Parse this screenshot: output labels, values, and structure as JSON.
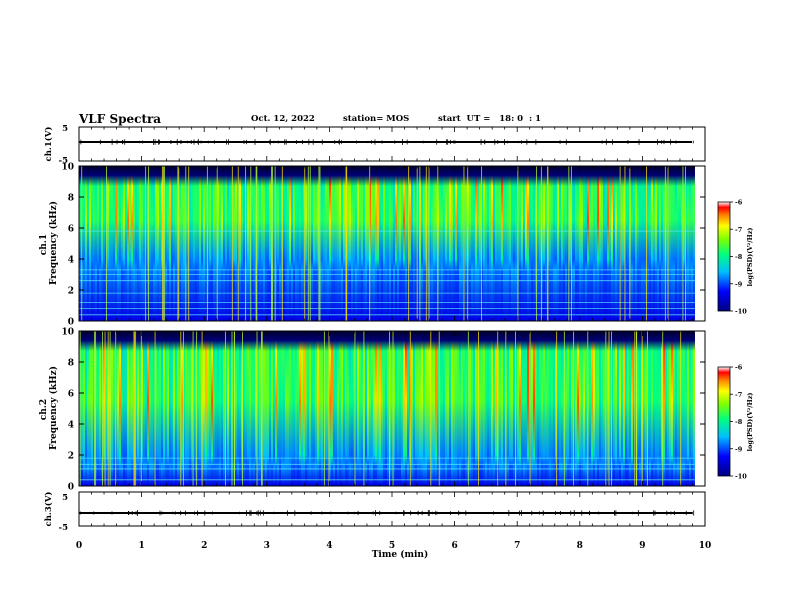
{
  "header": {
    "title": "VLF Spectra",
    "date": "Oct. 12, 2022",
    "station": "station= MOS",
    "start": "start  UT =   18: 0  : 1"
  },
  "chart_data": [
    {
      "type": "line",
      "panel": "ch1-waveform",
      "ylabel": "ch.1(V)",
      "yticks": [
        "5",
        "-5"
      ],
      "ylim": [
        -5,
        5
      ],
      "x_unit": "min",
      "xlim": [
        0,
        10
      ],
      "data_x_end": 9.84,
      "series": [
        {
          "values_mean": 0.0
        }
      ]
    },
    {
      "type": "heatmap",
      "panel": "ch1-spectrogram",
      "ylabel": "ch.1\nFrequency (kHz)",
      "yticks": [
        "0",
        "2",
        "4",
        "6",
        "8",
        "10"
      ],
      "ylim": [
        0,
        10
      ],
      "xlim": [
        0,
        10
      ],
      "data_x_end": 9.84,
      "intense_band_khz": [
        4,
        9
      ],
      "colorbar": {
        "label": "log(PSD)(V²/Hz)",
        "ticks": [
          "-6",
          "-7",
          "-8",
          "-9",
          "-10"
        ],
        "range": [
          -10,
          -6
        ]
      }
    },
    {
      "type": "heatmap",
      "panel": "ch2-spectrogram",
      "ylabel": "ch.2\nFrequency (kHz)",
      "yticks": [
        "0",
        "2",
        "4",
        "6",
        "8",
        "10"
      ],
      "ylim": [
        0,
        10
      ],
      "xlim": [
        0,
        10
      ],
      "data_x_end": 9.84,
      "intense_band_khz": [
        2,
        9
      ],
      "colorbar": {
        "label": "log(PSD)(V²/Hz)",
        "ticks": [
          "-6",
          "-7",
          "-8",
          "-9",
          "-10"
        ],
        "range": [
          -10,
          -6
        ]
      }
    },
    {
      "type": "line",
      "panel": "ch3-waveform",
      "ylabel": "ch.3(V)",
      "yticks": [
        "5",
        "-5"
      ],
      "ylim": [
        -5,
        5
      ],
      "xlim": [
        0,
        10
      ],
      "data_x_end": 9.84,
      "series": [
        {
          "values_mean": 0.0
        }
      ]
    }
  ],
  "x_axis": {
    "label": "Time  (min)",
    "ticks": [
      "0",
      "1",
      "2",
      "3",
      "4",
      "5",
      "6",
      "7",
      "8",
      "9",
      "10"
    ]
  }
}
